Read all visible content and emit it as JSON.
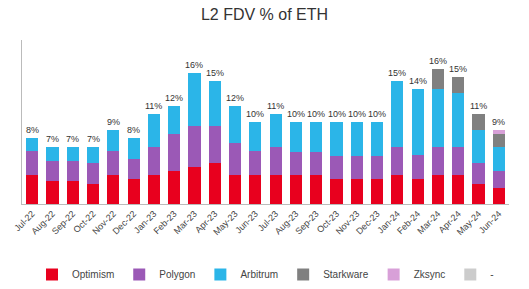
{
  "chart_data": {
    "type": "bar",
    "stacked": true,
    "title": "L2 FDV % of ETH",
    "categories": [
      "Jul-22",
      "Aug-22",
      "Sep-22",
      "Oct-22",
      "Nov-22",
      "Dec-22",
      "Jan-23",
      "Feb-23",
      "Mar-23",
      "Apr-23",
      "May-23",
      "Jun-23",
      "Jul-23",
      "Aug-23",
      "Sep-23",
      "Oct-23",
      "Nov-23",
      "Dec-23",
      "Jan-24",
      "Feb-24",
      "Mar-24",
      "Apr-24",
      "May-24",
      "Jun-24"
    ],
    "series": [
      {
        "name": "Optimism",
        "color": "#e8001e",
        "values": [
          3.5,
          2.8,
          2.8,
          2.5,
          3.5,
          3.0,
          3.5,
          4.0,
          4.5,
          5.0,
          3.5,
          3.5,
          3.5,
          3.5,
          3.5,
          3.0,
          3.0,
          3.0,
          3.5,
          3.0,
          3.5,
          3.5,
          2.5,
          2.0
        ]
      },
      {
        "name": "Polygon",
        "color": "#9b59b6",
        "values": [
          3.0,
          2.5,
          2.5,
          2.5,
          3.0,
          2.5,
          3.5,
          4.5,
          5.0,
          4.5,
          4.0,
          3.0,
          3.5,
          2.8,
          2.8,
          2.8,
          2.8,
          2.8,
          3.5,
          3.0,
          3.5,
          3.5,
          2.5,
          2.0
        ]
      },
      {
        "name": "Arbitrum",
        "color": "#2bb5e8",
        "values": [
          1.5,
          1.7,
          1.7,
          2.0,
          2.5,
          2.5,
          4.0,
          3.5,
          6.5,
          5.5,
          4.5,
          3.5,
          4.0,
          3.7,
          3.7,
          4.2,
          4.2,
          4.2,
          8.0,
          8.0,
          7.0,
          6.5,
          4.0,
          3.0
        ]
      },
      {
        "name": "Starkware",
        "color": "#808080",
        "values": [
          0.0,
          0.0,
          0.0,
          0.0,
          0.0,
          0.0,
          0.0,
          0.0,
          0.0,
          0.0,
          0.0,
          0.0,
          0.0,
          0.0,
          0.0,
          0.0,
          0.0,
          0.0,
          0.0,
          0.0,
          2.5,
          2.0,
          2.0,
          1.5
        ]
      },
      {
        "name": "Zksync",
        "color": "#d8a0d8",
        "values": [
          0.0,
          0.0,
          0.0,
          0.0,
          0.0,
          0.0,
          0.0,
          0.0,
          0.0,
          0.0,
          0.0,
          0.0,
          0.0,
          0.0,
          0.0,
          0.0,
          0.0,
          0.0,
          0.0,
          0.0,
          0.0,
          0.0,
          0.0,
          0.5
        ]
      },
      {
        "name": "-",
        "color": "#cccccc",
        "values": [
          0.0,
          0.0,
          0.0,
          0.0,
          0.0,
          0.0,
          0.0,
          0.0,
          0.0,
          0.0,
          0.0,
          0.0,
          0.0,
          0.0,
          0.0,
          0.0,
          0.0,
          0.0,
          0.0,
          0.0,
          0.0,
          0.0,
          0.0,
          0.0
        ]
      }
    ],
    "totals": {
      "values": [
        8,
        7,
        7,
        7,
        9,
        8,
        11,
        12,
        16,
        15,
        12,
        10,
        11,
        10,
        10,
        10,
        10,
        10,
        15,
        14,
        16,
        15,
        11,
        9
      ],
      "value_labels": [
        "8%",
        "7%",
        "7%",
        "7%",
        "9%",
        "8%",
        "11%",
        "12%",
        "16%",
        "15%",
        "12%",
        "10%",
        "11%",
        "10%",
        "10%",
        "10%",
        "10%",
        "10%",
        "15%",
        "14%",
        "16%",
        "15%",
        "11%",
        "9%"
      ]
    },
    "ylim": [
      0,
      20
    ],
    "tick_labels": "x",
    "grid": false,
    "legend": "bottom"
  }
}
